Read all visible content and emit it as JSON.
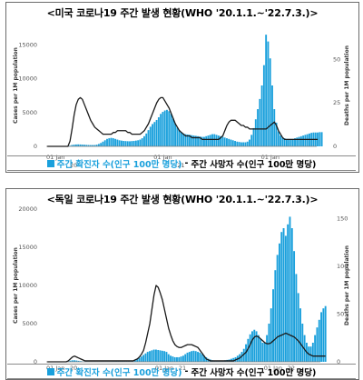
{
  "colors": {
    "cases_bar": "#1aa0dc",
    "deaths_line": "#1a1a1a",
    "border": "#6b6b6b"
  },
  "chart_data": [
    {
      "id": "us",
      "type": "bar",
      "title": "<미국 코로나19 주간 발생 현황(WHO '20.1.1.~'22.7.3.)>",
      "ylabel": "Cases per 1M population",
      "ylabel_right": "Deaths per 1M population",
      "ylim": [
        0,
        18000
      ],
      "yticks": [
        0,
        5000,
        10000,
        15000
      ],
      "ylim_right": [
        0,
        70
      ],
      "yticks_right": [
        0,
        25,
        50
      ],
      "xlim": [
        0,
        131
      ],
      "xticks": [
        {
          "x": 0,
          "label": "01 Jan",
          "sub": "20"
        },
        {
          "x": 52,
          "label": "01 Jan",
          "sub": "21"
        },
        {
          "x": 104,
          "label": "01 Jan",
          "sub": "22"
        }
      ],
      "series": [
        {
          "kind": "bar",
          "values": [
            0,
            0,
            0,
            0,
            0,
            0,
            0,
            0,
            0,
            5,
            40,
            100,
            200,
            250,
            280,
            290,
            280,
            260,
            240,
            220,
            200,
            190,
            190,
            200,
            250,
            350,
            500,
            700,
            900,
            1100,
            1200,
            1250,
            1200,
            1100,
            1000,
            900,
            850,
            800,
            780,
            760,
            750,
            780,
            800,
            850,
            900,
            1000,
            1200,
            1500,
            1900,
            2400,
            2900,
            3300,
            3600,
            3900,
            4300,
            4800,
            5100,
            5300,
            5400,
            5200,
            4800,
            4100,
            3400,
            2800,
            2400,
            2100,
            1900,
            1800,
            1750,
            1700,
            1650,
            1600,
            1550,
            1500,
            1450,
            1400,
            1400,
            1500,
            1600,
            1700,
            1800,
            1800,
            1700,
            1600,
            1500,
            1400,
            1300,
            1200,
            1100,
            1000,
            900,
            800,
            700,
            650,
            600,
            600,
            600,
            700,
            1000,
            1700,
            2700,
            4000,
            5500,
            7000,
            9000,
            12000,
            16500,
            15500,
            13000,
            9000,
            5500,
            3500,
            2200,
            1600,
            1300,
            1200,
            1100,
            1100,
            1100,
            1100,
            1200,
            1300,
            1400,
            1500,
            1600,
            1700,
            1800,
            1900,
            2000,
            2050,
            2050,
            2050,
            2100,
            2100
          ]
        },
        {
          "kind": "line",
          "values": [
            0,
            0,
            0,
            0,
            0,
            0,
            0,
            0,
            0,
            0,
            0,
            3,
            10,
            18,
            24,
            27,
            28,
            27,
            24,
            21,
            18,
            15,
            13,
            11,
            10,
            9,
            8,
            7,
            7,
            7,
            7,
            7,
            8,
            8,
            9,
            9,
            9,
            9,
            9,
            8,
            8,
            7,
            7,
            7,
            7,
            7,
            8,
            9,
            11,
            13,
            16,
            19,
            22,
            25,
            27,
            28,
            28,
            26,
            24,
            22,
            19,
            16,
            13,
            11,
            9,
            8,
            7,
            6,
            6,
            6,
            5,
            5,
            5,
            5,
            5,
            4,
            4,
            4,
            4,
            4,
            4,
            4,
            4,
            4,
            5,
            6,
            9,
            12,
            14,
            15,
            15,
            15,
            14,
            13,
            12,
            12,
            11,
            11,
            10,
            10,
            10,
            10,
            10,
            10,
            10,
            10,
            10,
            11,
            12,
            13,
            14,
            12,
            9,
            7,
            5,
            4,
            4,
            4,
            4,
            4,
            4,
            4,
            4,
            4,
            4,
            4,
            4,
            4,
            4,
            4,
            4,
            4
          ]
        }
      ]
    },
    {
      "id": "de",
      "type": "bar",
      "title": "<독일 코로나19 주간 발생 현황(WHO '20.1.1.~'22.7.3.)>",
      "ylabel": "Cases per 1M population",
      "ylabel_right": "Deaths per 1M population",
      "ylim": [
        0,
        20000
      ],
      "yticks": [
        0,
        5000,
        10000,
        15000,
        20000
      ],
      "ylim_right": [
        0,
        160
      ],
      "yticks_right": [
        0,
        50,
        100,
        150
      ],
      "xlim": [
        0,
        131
      ],
      "xticks": [
        {
          "x": 0,
          "label": "01 Jan",
          "sub": "20"
        },
        {
          "x": 52,
          "label": "01 Jan",
          "sub": "21"
        },
        {
          "x": 104,
          "label": "01 Jan",
          "sub": "22"
        }
      ],
      "series": [
        {
          "kind": "bar",
          "values": [
            0,
            0,
            0,
            0,
            0,
            0,
            0,
            0,
            0,
            10,
            60,
            150,
            200,
            200,
            170,
            130,
            90,
            60,
            40,
            30,
            25,
            20,
            20,
            20,
            20,
            20,
            20,
            20,
            20,
            25,
            30,
            40,
            50,
            60,
            60,
            60,
            60,
            60,
            60,
            70,
            90,
            120,
            170,
            300,
            500,
            700,
            900,
            1100,
            1300,
            1400,
            1500,
            1600,
            1600,
            1550,
            1500,
            1450,
            1400,
            1300,
            1000,
            800,
            700,
            600,
            600,
            600,
            700,
            800,
            1000,
            1200,
            1300,
            1400,
            1450,
            1400,
            1300,
            1200,
            1000,
            800,
            600,
            400,
            300,
            200,
            150,
            150,
            150,
            150,
            150,
            200,
            250,
            300,
            400,
            500,
            600,
            800,
            1000,
            1300,
            1700,
            2300,
            3000,
            3600,
            4000,
            4200,
            4000,
            3500,
            3000,
            2500,
            2500,
            3500,
            5000,
            7000,
            9500,
            12000,
            14000,
            15500,
            17000,
            17500,
            16500,
            18000,
            19000,
            17500,
            14500,
            11500,
            9000,
            7000,
            5000,
            3500,
            2500,
            2000,
            2000,
            2500,
            3500,
            4500,
            5500,
            6500,
            7000,
            7300
          ]
        },
        {
          "kind": "line",
          "values": [
            0,
            0,
            0,
            0,
            0,
            0,
            0,
            0,
            0,
            0,
            1,
            3,
            5,
            6,
            5,
            4,
            3,
            2,
            1,
            1,
            1,
            1,
            1,
            1,
            1,
            1,
            1,
            1,
            1,
            1,
            1,
            1,
            1,
            1,
            1,
            1,
            1,
            1,
            1,
            1,
            1,
            1,
            2,
            3,
            5,
            8,
            12,
            20,
            30,
            40,
            55,
            70,
            80,
            78,
            72,
            65,
            55,
            45,
            35,
            28,
            22,
            18,
            16,
            15,
            15,
            16,
            17,
            18,
            18,
            18,
            17,
            16,
            15,
            12,
            9,
            6,
            3,
            2,
            1,
            1,
            1,
            1,
            1,
            1,
            1,
            1,
            1,
            1,
            1,
            1,
            2,
            3,
            4,
            6,
            8,
            10,
            14,
            18,
            23,
            26,
            27,
            26,
            24,
            22,
            20,
            19,
            19,
            20,
            22,
            24,
            26,
            27,
            28,
            29,
            30,
            29,
            28,
            27,
            26,
            24,
            22,
            19,
            16,
            13,
            10,
            8,
            7,
            6,
            6,
            6,
            6,
            6,
            6,
            6
          ]
        }
      ]
    }
  ],
  "legends": [
    {
      "cases": "주간 확진자 수(인구 100만 명당)",
      "sep": " - ",
      "deaths": "주간 사망자 수(인구 100만 명당)"
    },
    {
      "cases": "주간 확진자 수(인구 100만 명당)",
      "sep": " - ",
      "deaths": "주간 사망자 수(인구 100만 명당)"
    }
  ]
}
